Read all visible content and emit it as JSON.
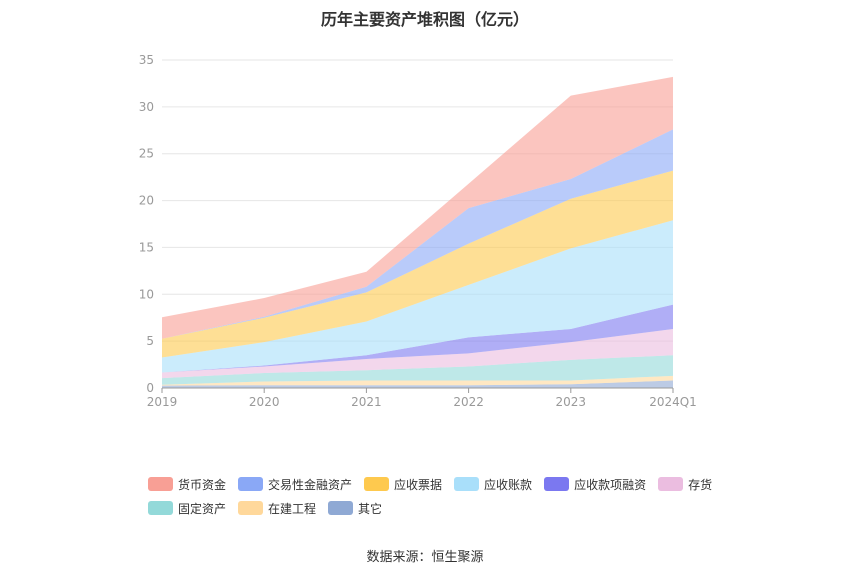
{
  "chart_data": {
    "type": "area",
    "stacked": true,
    "title": "历年主要资产堆积图（亿元）",
    "categories": [
      "2019",
      "2020",
      "2021",
      "2022",
      "2023",
      "2024Q1"
    ],
    "ylim": [
      0,
      35
    ],
    "yticks": [
      0,
      5,
      10,
      15,
      20,
      25,
      30,
      35
    ],
    "grid": true,
    "legend_position": "bottom",
    "series": [
      {
        "name": "其它",
        "color": "#8fa9d4",
        "values": [
          0.25,
          0.3,
          0.3,
          0.3,
          0.4,
          0.8
        ]
      },
      {
        "name": "在建工程",
        "color": "#ffd89b",
        "values": [
          0.1,
          0.4,
          0.5,
          0.5,
          0.4,
          0.5
        ]
      },
      {
        "name": "固定资产",
        "color": "#93d9d9",
        "values": [
          0.7,
          0.9,
          1.1,
          1.5,
          2.2,
          2.2
        ]
      },
      {
        "name": "存货",
        "color": "#ebbde0",
        "values": [
          0.6,
          0.7,
          1.2,
          1.4,
          1.9,
          2.8
        ]
      },
      {
        "name": "应收款项融资",
        "color": "#7b78f0",
        "values": [
          0.0,
          0.1,
          0.4,
          1.7,
          1.4,
          2.6
        ]
      },
      {
        "name": "应收账款",
        "color": "#a9dffa",
        "values": [
          1.6,
          2.5,
          3.6,
          5.6,
          8.6,
          9.0
        ]
      },
      {
        "name": "应收票据",
        "color": "#fec94e",
        "values": [
          2.0,
          2.6,
          3.1,
          4.4,
          5.3,
          5.3
        ]
      },
      {
        "name": "交易性金融资产",
        "color": "#8aa8f6",
        "values": [
          0.0,
          0.1,
          0.6,
          3.8,
          2.1,
          4.4
        ]
      },
      {
        "name": "货币资金",
        "color": "#f89f95",
        "values": [
          2.3,
          2.0,
          1.6,
          2.6,
          8.9,
          5.6
        ]
      }
    ],
    "legend_order": [
      "货币资金",
      "交易性金融资产",
      "应收票据",
      "应收账款",
      "应收款项融资",
      "存货",
      "固定资产",
      "在建工程",
      "其它"
    ]
  },
  "source_note": "数据来源：恒生聚源"
}
